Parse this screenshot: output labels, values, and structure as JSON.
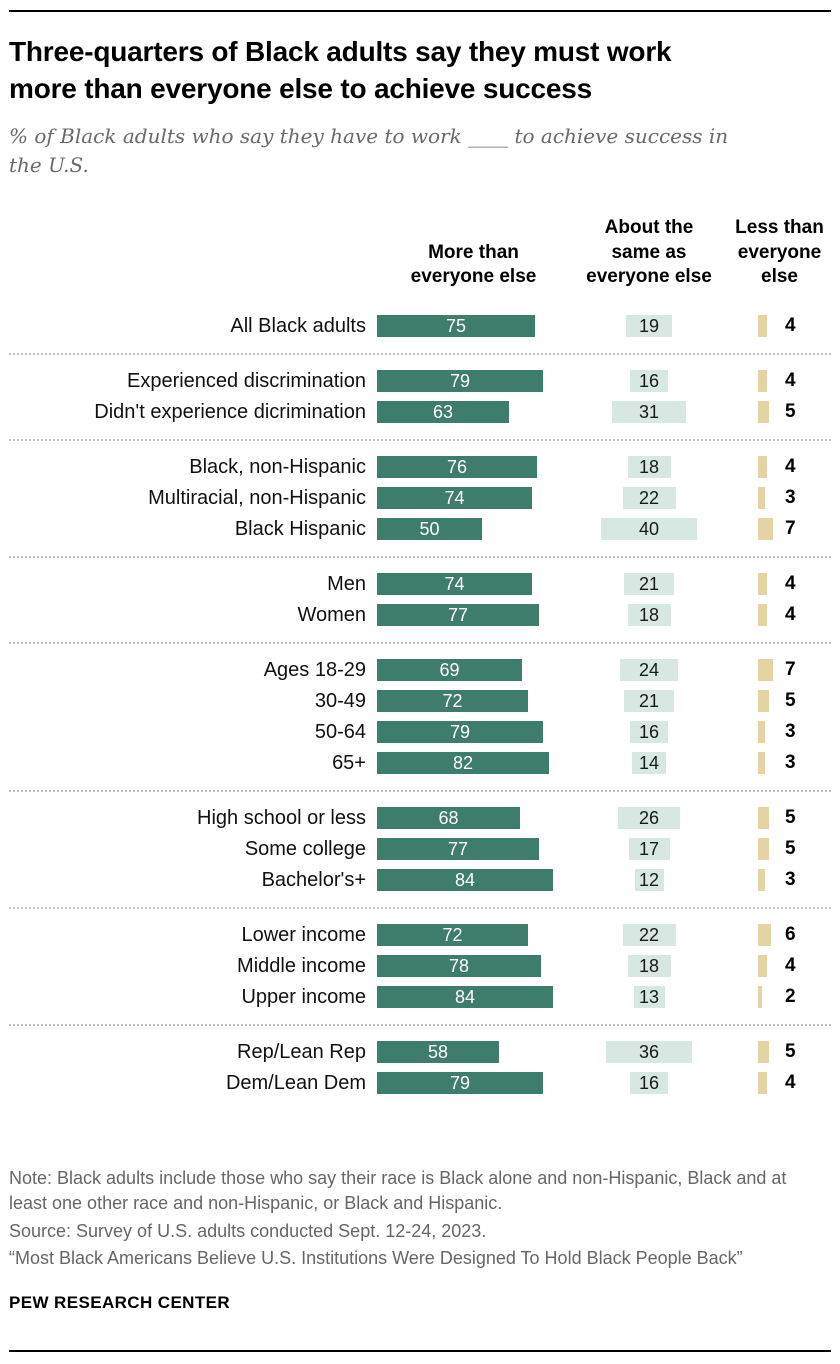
{
  "header": {
    "title": "Three-quarters of Black adults say they must work more than everyone else to achieve success",
    "subtitle": "% of Black adults who say they have to work ____ to achieve success in the U.S."
  },
  "chart_data": {
    "type": "bar",
    "orientation": "horizontal",
    "unit": "%",
    "xlim": [
      0,
      100
    ],
    "headers": [
      "More than\neveryone else",
      "About the\nsame as\neveryone else",
      "Less than\neveryone\nelse"
    ],
    "series": [
      {
        "name": "More than everyone else",
        "color": "#3e7c6b"
      },
      {
        "name": "About the same as everyone else",
        "color": "#d7e7e1"
      },
      {
        "name": "Less than everyone else",
        "color": "#e6d3a3"
      }
    ],
    "groups": [
      {
        "rows": [
          {
            "label": "All Black adults",
            "values": [
              75,
              19,
              4
            ]
          }
        ]
      },
      {
        "rows": [
          {
            "label": "Experienced discrimination",
            "values": [
              79,
              16,
              4
            ]
          },
          {
            "label": "Didn't experience dicrimination",
            "values": [
              63,
              31,
              5
            ]
          }
        ]
      },
      {
        "rows": [
          {
            "label": "Black, non-Hispanic",
            "values": [
              76,
              18,
              4
            ]
          },
          {
            "label": "Multiracial, non-Hispanic",
            "values": [
              74,
              22,
              3
            ]
          },
          {
            "label": "Black Hispanic",
            "values": [
              50,
              40,
              7
            ]
          }
        ]
      },
      {
        "rows": [
          {
            "label": "Men",
            "values": [
              74,
              21,
              4
            ]
          },
          {
            "label": "Women",
            "values": [
              77,
              18,
              4
            ]
          }
        ]
      },
      {
        "rows": [
          {
            "label": "Ages 18-29",
            "values": [
              69,
              24,
              7
            ]
          },
          {
            "label": "30-49",
            "values": [
              72,
              21,
              5
            ]
          },
          {
            "label": "50-64",
            "values": [
              79,
              16,
              3
            ]
          },
          {
            "label": "65+",
            "values": [
              82,
              14,
              3
            ]
          }
        ]
      },
      {
        "rows": [
          {
            "label": "High school or less",
            "values": [
              68,
              26,
              5
            ]
          },
          {
            "label": "Some college",
            "values": [
              77,
              17,
              5
            ]
          },
          {
            "label": "Bachelor's+",
            "values": [
              84,
              12,
              3
            ]
          }
        ]
      },
      {
        "rows": [
          {
            "label": "Lower income",
            "values": [
              72,
              22,
              6
            ]
          },
          {
            "label": "Middle income",
            "values": [
              78,
              18,
              4
            ]
          },
          {
            "label": "Upper income",
            "values": [
              84,
              13,
              2
            ]
          }
        ]
      },
      {
        "rows": [
          {
            "label": "Rep/Lean Rep",
            "values": [
              58,
              36,
              5
            ]
          },
          {
            "label": "Dem/Lean Dem",
            "values": [
              79,
              16,
              4
            ]
          }
        ]
      }
    ]
  },
  "footer": {
    "note": "Note: Black adults include those who say their race is Black alone and non-Hispanic, Black and at least one other race and non-Hispanic, or Black and Hispanic.",
    "source": "Source: Survey of U.S. adults conducted Sept. 12-24, 2023.",
    "report": "“Most Black Americans Believe U.S. Institutions Were Designed To Hold Black People Back”",
    "brand": "PEW RESEARCH CENTER"
  }
}
